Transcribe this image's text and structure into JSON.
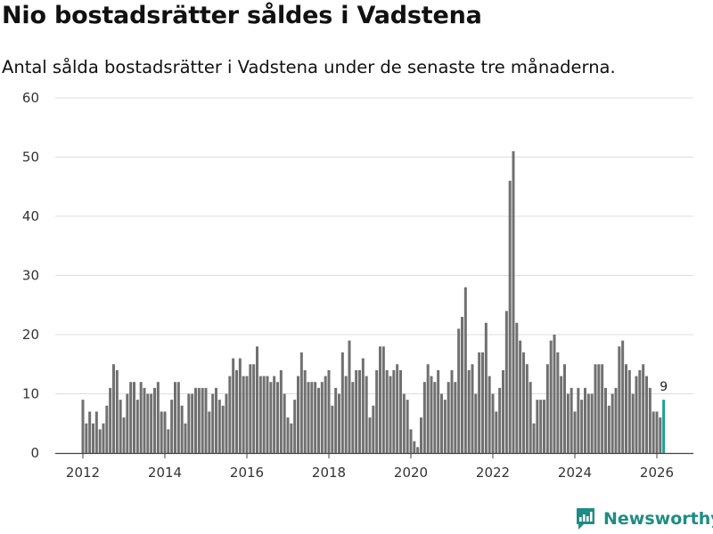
{
  "title": "Nio bostadsrätter såldes i Vadstena",
  "subtitle": "Antal sålda bostadsrätter i Vadstena under de senaste tre månaderna.",
  "brand": {
    "name": "Newsworthy",
    "color": "#1e8c84"
  },
  "chart_data": {
    "type": "bar",
    "title": "Nio bostadsrätter såldes i Vadstena",
    "xlabel": "",
    "ylabel": "",
    "ylim": [
      0,
      60
    ],
    "yticks": [
      0,
      10,
      20,
      30,
      40,
      50,
      60
    ],
    "xticks": [
      "2012",
      "2014",
      "2016",
      "2018",
      "2020",
      "2022",
      "2024",
      "2026"
    ],
    "x_start": 2012.0,
    "x_end": 2026.25,
    "bar_color": "#707070",
    "highlight_color": "#1e9e96",
    "highlight_label": "9",
    "categories": [
      "2012-01",
      "2012-02",
      "2012-03",
      "2012-04",
      "2012-05",
      "2012-06",
      "2012-07",
      "2012-08",
      "2012-09",
      "2012-10",
      "2012-11",
      "2012-12",
      "2013-01",
      "2013-02",
      "2013-03",
      "2013-04",
      "2013-05",
      "2013-06",
      "2013-07",
      "2013-08",
      "2013-09",
      "2013-10",
      "2013-11",
      "2013-12",
      "2014-01",
      "2014-02",
      "2014-03",
      "2014-04",
      "2014-05",
      "2014-06",
      "2014-07",
      "2014-08",
      "2014-09",
      "2014-10",
      "2014-11",
      "2014-12",
      "2015-01",
      "2015-02",
      "2015-03",
      "2015-04",
      "2015-05",
      "2015-06",
      "2015-07",
      "2015-08",
      "2015-09",
      "2015-10",
      "2015-11",
      "2015-12",
      "2016-01",
      "2016-02",
      "2016-03",
      "2016-04",
      "2016-05",
      "2016-06",
      "2016-07",
      "2016-08",
      "2016-09",
      "2016-10",
      "2016-11",
      "2016-12",
      "2017-01",
      "2017-02",
      "2017-03",
      "2017-04",
      "2017-05",
      "2017-06",
      "2017-07",
      "2017-08",
      "2017-09",
      "2017-10",
      "2017-11",
      "2017-12",
      "2018-01",
      "2018-02",
      "2018-03",
      "2018-04",
      "2018-05",
      "2018-06",
      "2018-07",
      "2018-08",
      "2018-09",
      "2018-10",
      "2018-11",
      "2018-12",
      "2019-01",
      "2019-02",
      "2019-03",
      "2019-04",
      "2019-05",
      "2019-06",
      "2019-07",
      "2019-08",
      "2019-09",
      "2019-10",
      "2019-11",
      "2019-12",
      "2020-01",
      "2020-02",
      "2020-03",
      "2020-04",
      "2020-05",
      "2020-06",
      "2020-07",
      "2020-08",
      "2020-09",
      "2020-10",
      "2020-11",
      "2020-12",
      "2021-01",
      "2021-02",
      "2021-03",
      "2021-04",
      "2021-05",
      "2021-06",
      "2021-07",
      "2021-08",
      "2021-09",
      "2021-10",
      "2021-11",
      "2021-12",
      "2022-01",
      "2022-02",
      "2022-03",
      "2022-04",
      "2022-05",
      "2022-06",
      "2022-07",
      "2022-08",
      "2022-09",
      "2022-10",
      "2022-11",
      "2022-12",
      "2023-01",
      "2023-02",
      "2023-03",
      "2023-04",
      "2023-05",
      "2023-06",
      "2023-07",
      "2023-08",
      "2023-09",
      "2023-10",
      "2023-11",
      "2023-12",
      "2024-01",
      "2024-02",
      "2024-03",
      "2024-04",
      "2024-05",
      "2024-06",
      "2024-07",
      "2024-08",
      "2024-09",
      "2024-10",
      "2024-11",
      "2024-12",
      "2025-01",
      "2025-02",
      "2025-03",
      "2025-04",
      "2025-05",
      "2025-06",
      "2025-07",
      "2025-08",
      "2025-09",
      "2025-10",
      "2025-11",
      "2025-12",
      "2026-01",
      "2026-02",
      "2026-03"
    ],
    "values": [
      9,
      5,
      7,
      5,
      7,
      4,
      5,
      8,
      11,
      15,
      14,
      9,
      6,
      10,
      12,
      12,
      9,
      12,
      11,
      10,
      10,
      11,
      12,
      7,
      7,
      4,
      9,
      12,
      12,
      8,
      5,
      10,
      10,
      11,
      11,
      11,
      11,
      7,
      10,
      11,
      9,
      8,
      10,
      13,
      16,
      14,
      16,
      13,
      13,
      15,
      15,
      18,
      13,
      13,
      13,
      12,
      13,
      12,
      14,
      10,
      6,
      5,
      9,
      13,
      17,
      14,
      12,
      12,
      12,
      11,
      12,
      13,
      14,
      8,
      11,
      10,
      17,
      13,
      19,
      12,
      14,
      14,
      16,
      13,
      6,
      8,
      14,
      18,
      18,
      14,
      13,
      14,
      15,
      14,
      10,
      9,
      4,
      2,
      1,
      6,
      12,
      15,
      13,
      12,
      14,
      10,
      9,
      12,
      14,
      12,
      21,
      23,
      28,
      14,
      15,
      10,
      17,
      17,
      22,
      13,
      10,
      7,
      11,
      14,
      24,
      46,
      51,
      22,
      19,
      17,
      15,
      12,
      5,
      9,
      9,
      9,
      15,
      19,
      20,
      17,
      13,
      15,
      10,
      11,
      7,
      11,
      9,
      11,
      10,
      10,
      15,
      15,
      15,
      11,
      8,
      10,
      11,
      18,
      19,
      15,
      14,
      10,
      13,
      14,
      15,
      13,
      11,
      7,
      7,
      6,
      9
    ]
  }
}
